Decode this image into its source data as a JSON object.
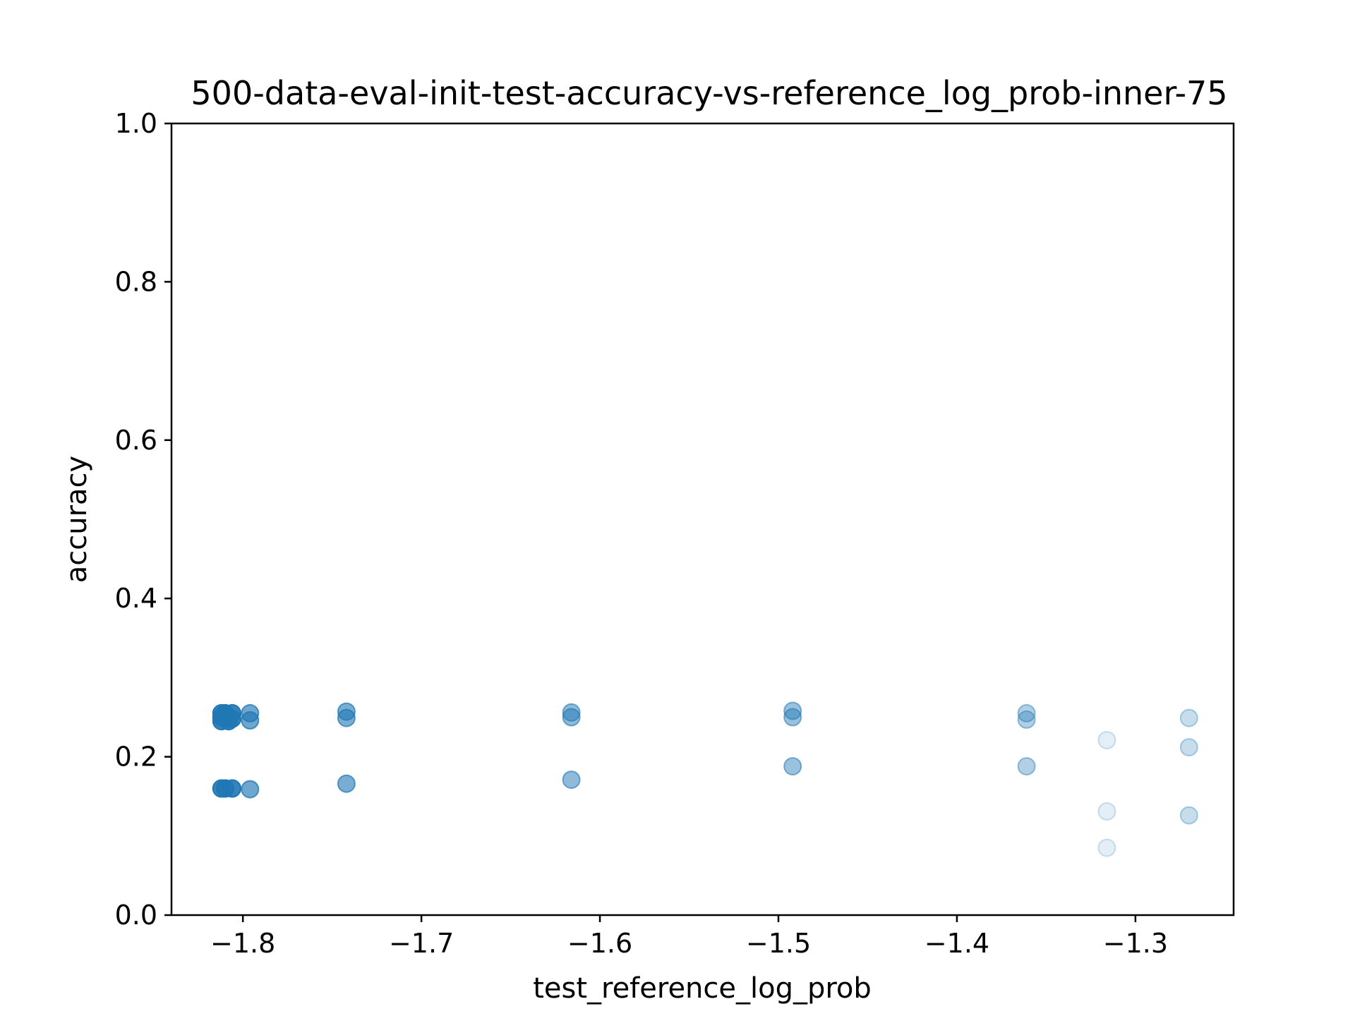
{
  "chart_data": {
    "type": "scatter",
    "title": "500-data-eval-init-test-accuracy-vs-reference_log_prob-inner-75",
    "xlabel": "test_reference_log_prob",
    "ylabel": "accuracy",
    "xlim": [
      -1.84,
      -1.245
    ],
    "ylim": [
      0.0,
      1.0
    ],
    "xticks": [
      -1.8,
      -1.7,
      -1.6,
      -1.5,
      -1.4,
      -1.3
    ],
    "xtick_labels": [
      "−1.8",
      "−1.7",
      "−1.6",
      "−1.5",
      "−1.4",
      "−1.3"
    ],
    "yticks": [
      0.0,
      0.2,
      0.4,
      0.6,
      0.8,
      1.0
    ],
    "ytick_labels": [
      "0.0",
      "0.2",
      "0.4",
      "0.6",
      "0.8",
      "1.0"
    ],
    "grid": false,
    "marker_color": "#1f77b4",
    "points": [
      {
        "x": -1.812,
        "y": 0.255,
        "alpha": 0.9
      },
      {
        "x": -1.812,
        "y": 0.25,
        "alpha": 0.9
      },
      {
        "x": -1.812,
        "y": 0.245,
        "alpha": 0.9
      },
      {
        "x": -1.81,
        "y": 0.255,
        "alpha": 0.9
      },
      {
        "x": -1.81,
        "y": 0.25,
        "alpha": 0.9
      },
      {
        "x": -1.808,
        "y": 0.245,
        "alpha": 0.9
      },
      {
        "x": -1.806,
        "y": 0.255,
        "alpha": 0.9
      },
      {
        "x": -1.806,
        "y": 0.248,
        "alpha": 0.9
      },
      {
        "x": -1.812,
        "y": 0.16,
        "alpha": 0.9
      },
      {
        "x": -1.81,
        "y": 0.16,
        "alpha": 0.9
      },
      {
        "x": -1.806,
        "y": 0.16,
        "alpha": 0.9
      },
      {
        "x": -1.796,
        "y": 0.255,
        "alpha": 0.65
      },
      {
        "x": -1.796,
        "y": 0.246,
        "alpha": 0.65
      },
      {
        "x": -1.796,
        "y": 0.159,
        "alpha": 0.65
      },
      {
        "x": -1.742,
        "y": 0.257,
        "alpha": 0.6
      },
      {
        "x": -1.742,
        "y": 0.249,
        "alpha": 0.6
      },
      {
        "x": -1.742,
        "y": 0.166,
        "alpha": 0.6
      },
      {
        "x": -1.616,
        "y": 0.256,
        "alpha": 0.5
      },
      {
        "x": -1.616,
        "y": 0.25,
        "alpha": 0.5
      },
      {
        "x": -1.616,
        "y": 0.171,
        "alpha": 0.5
      },
      {
        "x": -1.492,
        "y": 0.258,
        "alpha": 0.45
      },
      {
        "x": -1.492,
        "y": 0.25,
        "alpha": 0.45
      },
      {
        "x": -1.492,
        "y": 0.188,
        "alpha": 0.45
      },
      {
        "x": -1.361,
        "y": 0.255,
        "alpha": 0.35
      },
      {
        "x": -1.361,
        "y": 0.247,
        "alpha": 0.35
      },
      {
        "x": -1.361,
        "y": 0.188,
        "alpha": 0.35
      },
      {
        "x": -1.316,
        "y": 0.221,
        "alpha": 0.12
      },
      {
        "x": -1.316,
        "y": 0.131,
        "alpha": 0.12
      },
      {
        "x": -1.316,
        "y": 0.085,
        "alpha": 0.12
      },
      {
        "x": -1.27,
        "y": 0.249,
        "alpha": 0.25
      },
      {
        "x": -1.27,
        "y": 0.212,
        "alpha": 0.25
      },
      {
        "x": -1.27,
        "y": 0.126,
        "alpha": 0.25
      }
    ]
  }
}
